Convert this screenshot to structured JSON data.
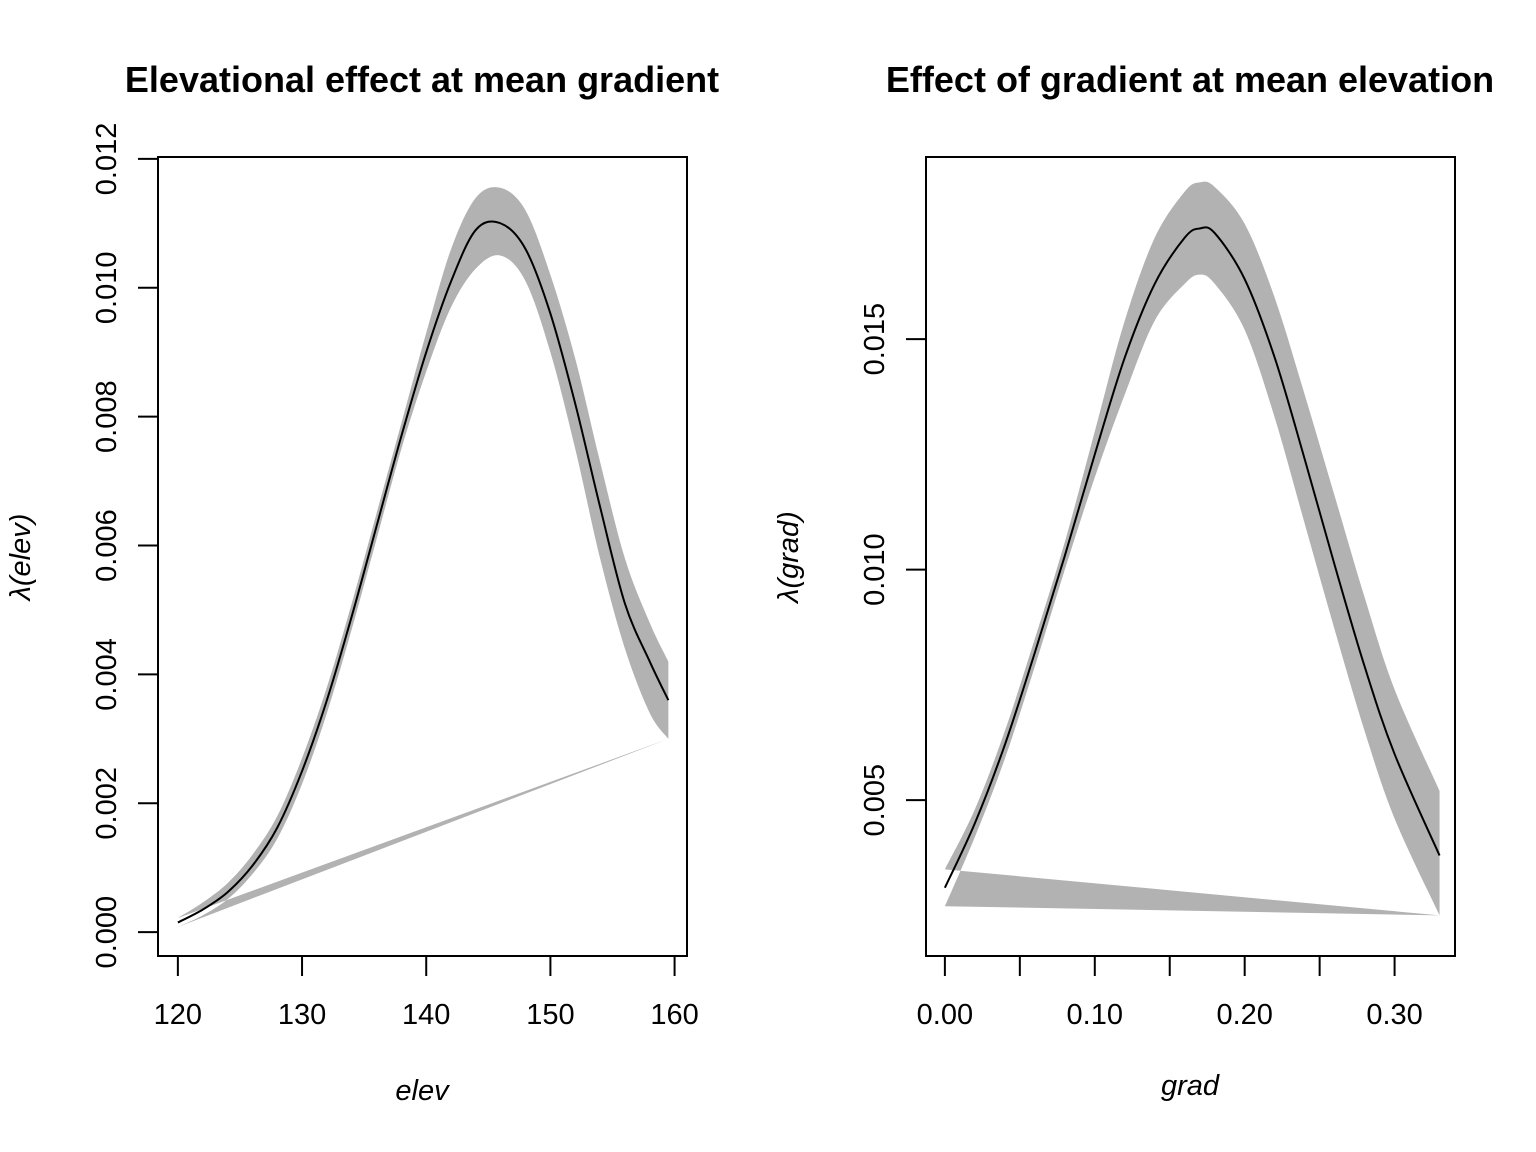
{
  "colors": {
    "band": "#b2b2b2",
    "line": "#000000",
    "axis": "#000000",
    "background": "#ffffff"
  },
  "chart_data": [
    {
      "type": "line",
      "title": "Elevational effect at mean gradient",
      "xlabel": "elev",
      "ylabel": "λ(elev)",
      "xlim": [
        118.4,
        161.0
      ],
      "ylim": [
        -0.00037,
        0.01203
      ],
      "x_ticks": [
        120,
        130,
        140,
        150,
        160
      ],
      "x_tick_labels": [
        "120",
        "130",
        "140",
        "150",
        "160"
      ],
      "y_ticks": [
        0.0,
        0.002,
        0.004,
        0.006,
        0.008,
        0.01,
        0.012
      ],
      "y_tick_labels": [
        "0.000",
        "0.002",
        "0.004",
        "0.006",
        "0.008",
        "0.010",
        "0.012"
      ],
      "grid": false,
      "legend": "none",
      "series": [
        {
          "x": [
            120,
            122,
            124,
            126,
            128,
            130,
            132,
            134,
            136,
            138,
            140,
            142,
            144,
            146,
            148,
            150,
            152,
            154,
            156,
            158,
            159.5
          ],
          "y": [
            0.00015,
            0.00035,
            0.00062,
            0.00103,
            0.00162,
            0.0025,
            0.0036,
            0.0049,
            0.0063,
            0.0077,
            0.009,
            0.0101,
            0.0109,
            0.011,
            0.0106,
            0.0096,
            0.0082,
            0.0066,
            0.0051,
            0.0042,
            0.0036
          ],
          "lower": [
            8e-05,
            0.00026,
            0.00051,
            0.0009,
            0.00145,
            0.0023,
            0.0034,
            0.0047,
            0.0061,
            0.0075,
            0.0087,
            0.0097,
            0.0103,
            0.0105,
            0.0101,
            0.009,
            0.0075,
            0.0058,
            0.0044,
            0.0034,
            0.003
          ],
          "upper": [
            0.00022,
            0.00046,
            0.00076,
            0.0012,
            0.0018,
            0.0027,
            0.0038,
            0.0051,
            0.0065,
            0.0079,
            0.0093,
            0.0106,
            0.0114,
            0.01155,
            0.0112,
            0.0102,
            0.0089,
            0.0073,
            0.0058,
            0.0048,
            0.0042
          ]
        }
      ]
    },
    {
      "type": "line",
      "title": "Effect of gradient at mean elevation",
      "xlabel": "grad",
      "ylabel": "λ(grad)",
      "xlim": [
        -0.0126,
        0.3403
      ],
      "ylim": [
        0.00162,
        0.01895
      ],
      "x_ticks": [
        0.0,
        0.05,
        0.1,
        0.15,
        0.2,
        0.25,
        0.3
      ],
      "x_tick_labels": [
        "0.00",
        "",
        "0.10",
        "",
        "0.20",
        "",
        "0.30"
      ],
      "y_ticks": [
        0.005,
        0.01,
        0.015
      ],
      "y_tick_labels": [
        "0.005",
        "0.010",
        "0.015"
      ],
      "grid": false,
      "legend": "none",
      "series": [
        {
          "x": [
            0.0,
            0.02,
            0.04,
            0.06,
            0.08,
            0.1,
            0.12,
            0.14,
            0.16,
            0.17,
            0.18,
            0.2,
            0.22,
            0.24,
            0.26,
            0.28,
            0.3,
            0.33
          ],
          "y": [
            0.0031,
            0.0045,
            0.0062,
            0.0082,
            0.0103,
            0.0125,
            0.0146,
            0.0162,
            0.0172,
            0.0174,
            0.0173,
            0.0163,
            0.0146,
            0.0124,
            0.0101,
            0.0079,
            0.006,
            0.0038
          ],
          "lower": [
            0.0027,
            0.0042,
            0.0059,
            0.0079,
            0.01,
            0.012,
            0.0138,
            0.0154,
            0.0162,
            0.0164,
            0.0162,
            0.0152,
            0.0133,
            0.011,
            0.0087,
            0.0065,
            0.0046,
            0.0025
          ],
          "upper": [
            0.0035,
            0.0048,
            0.0065,
            0.0085,
            0.0106,
            0.013,
            0.0154,
            0.0172,
            0.0182,
            0.0184,
            0.0183,
            0.0175,
            0.0159,
            0.0138,
            0.0116,
            0.0094,
            0.0074,
            0.0052
          ]
        }
      ]
    }
  ]
}
